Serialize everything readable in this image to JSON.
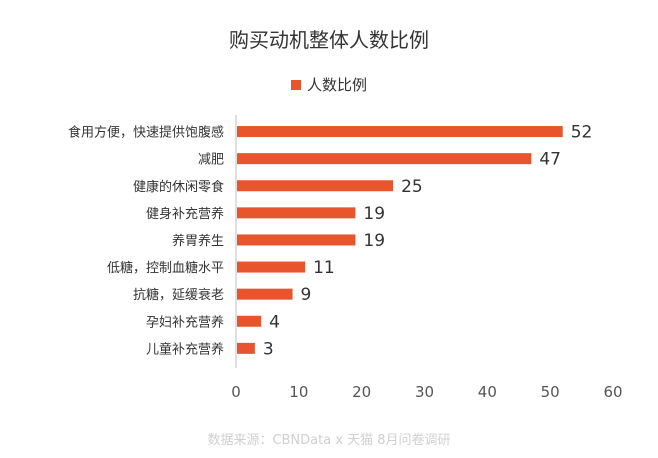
{
  "chart_data": {
    "type": "bar",
    "orientation": "horizontal",
    "title": "购买动机整体人数比例",
    "legend": {
      "label": "人数比例",
      "position": "top"
    },
    "categories": [
      "食用方便，快速提供饱腹感",
      "减肥",
      "健康的休闲零食",
      "健身补充营养",
      "养胃养生",
      "低糖，控制血糖水平",
      "抗糖，延缓衰老",
      "孕妇补充营养",
      "儿童补充营养"
    ],
    "values": [
      52,
      47,
      25,
      19,
      19,
      11,
      9,
      4,
      3
    ],
    "xlim": [
      0,
      60
    ],
    "xticks": [
      0,
      10,
      20,
      30,
      40,
      50,
      60
    ],
    "grid": false,
    "bar_color": "#E8552D"
  },
  "source_note": "数据来源：CBNData x 天猫 8月问卷调研"
}
